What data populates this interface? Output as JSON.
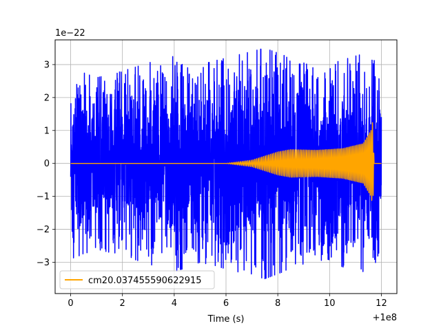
{
  "chart_data": {
    "type": "line",
    "title": "",
    "xlabel": "Time (s)",
    "ylabel": "",
    "x_offset_label": "+1e8",
    "y_scale_label": "1e−22",
    "xlim": [
      -0.6,
      12.6
    ],
    "ylim": [
      -3.95,
      3.75
    ],
    "x_ticks": [
      0,
      2,
      4,
      6,
      8,
      10,
      12
    ],
    "x_tick_labels": [
      "0",
      "2",
      "4",
      "6",
      "8",
      "10",
      "12"
    ],
    "y_ticks": [
      -3,
      -2,
      -1,
      0,
      1,
      2,
      3
    ],
    "y_tick_labels": [
      "−3",
      "−2",
      "−1",
      "0",
      "1",
      "2",
      "3"
    ],
    "grid": true,
    "legend_position": "lower-left",
    "series": [
      {
        "name": "",
        "color": "#0000ff",
        "kind": "noise",
        "x_range": [
          0,
          12
        ],
        "envelope": [
          [
            0,
            2.9
          ],
          [
            1.0,
            2.6
          ],
          [
            2.0,
            2.8
          ],
          [
            4.0,
            3.3
          ],
          [
            5.0,
            3.0
          ],
          [
            7.5,
            3.5
          ],
          [
            9.5,
            2.9
          ],
          [
            11.6,
            3.4
          ],
          [
            12.0,
            2.5
          ]
        ]
      },
      {
        "name": "cm20.037455590622915",
        "color": "#ffa500",
        "kind": "chirp",
        "x_range": [
          0,
          11.72
        ],
        "envelope": [
          [
            0,
            0.0
          ],
          [
            6.0,
            0.0
          ],
          [
            7.0,
            0.1
          ],
          [
            8.0,
            0.35
          ],
          [
            8.5,
            0.42
          ],
          [
            9.5,
            0.4
          ],
          [
            10.5,
            0.45
          ],
          [
            11.3,
            0.6
          ],
          [
            11.6,
            1.0
          ],
          [
            11.67,
            1.3
          ],
          [
            11.72,
            0.0
          ],
          [
            12.0,
            0.0
          ]
        ]
      }
    ]
  }
}
